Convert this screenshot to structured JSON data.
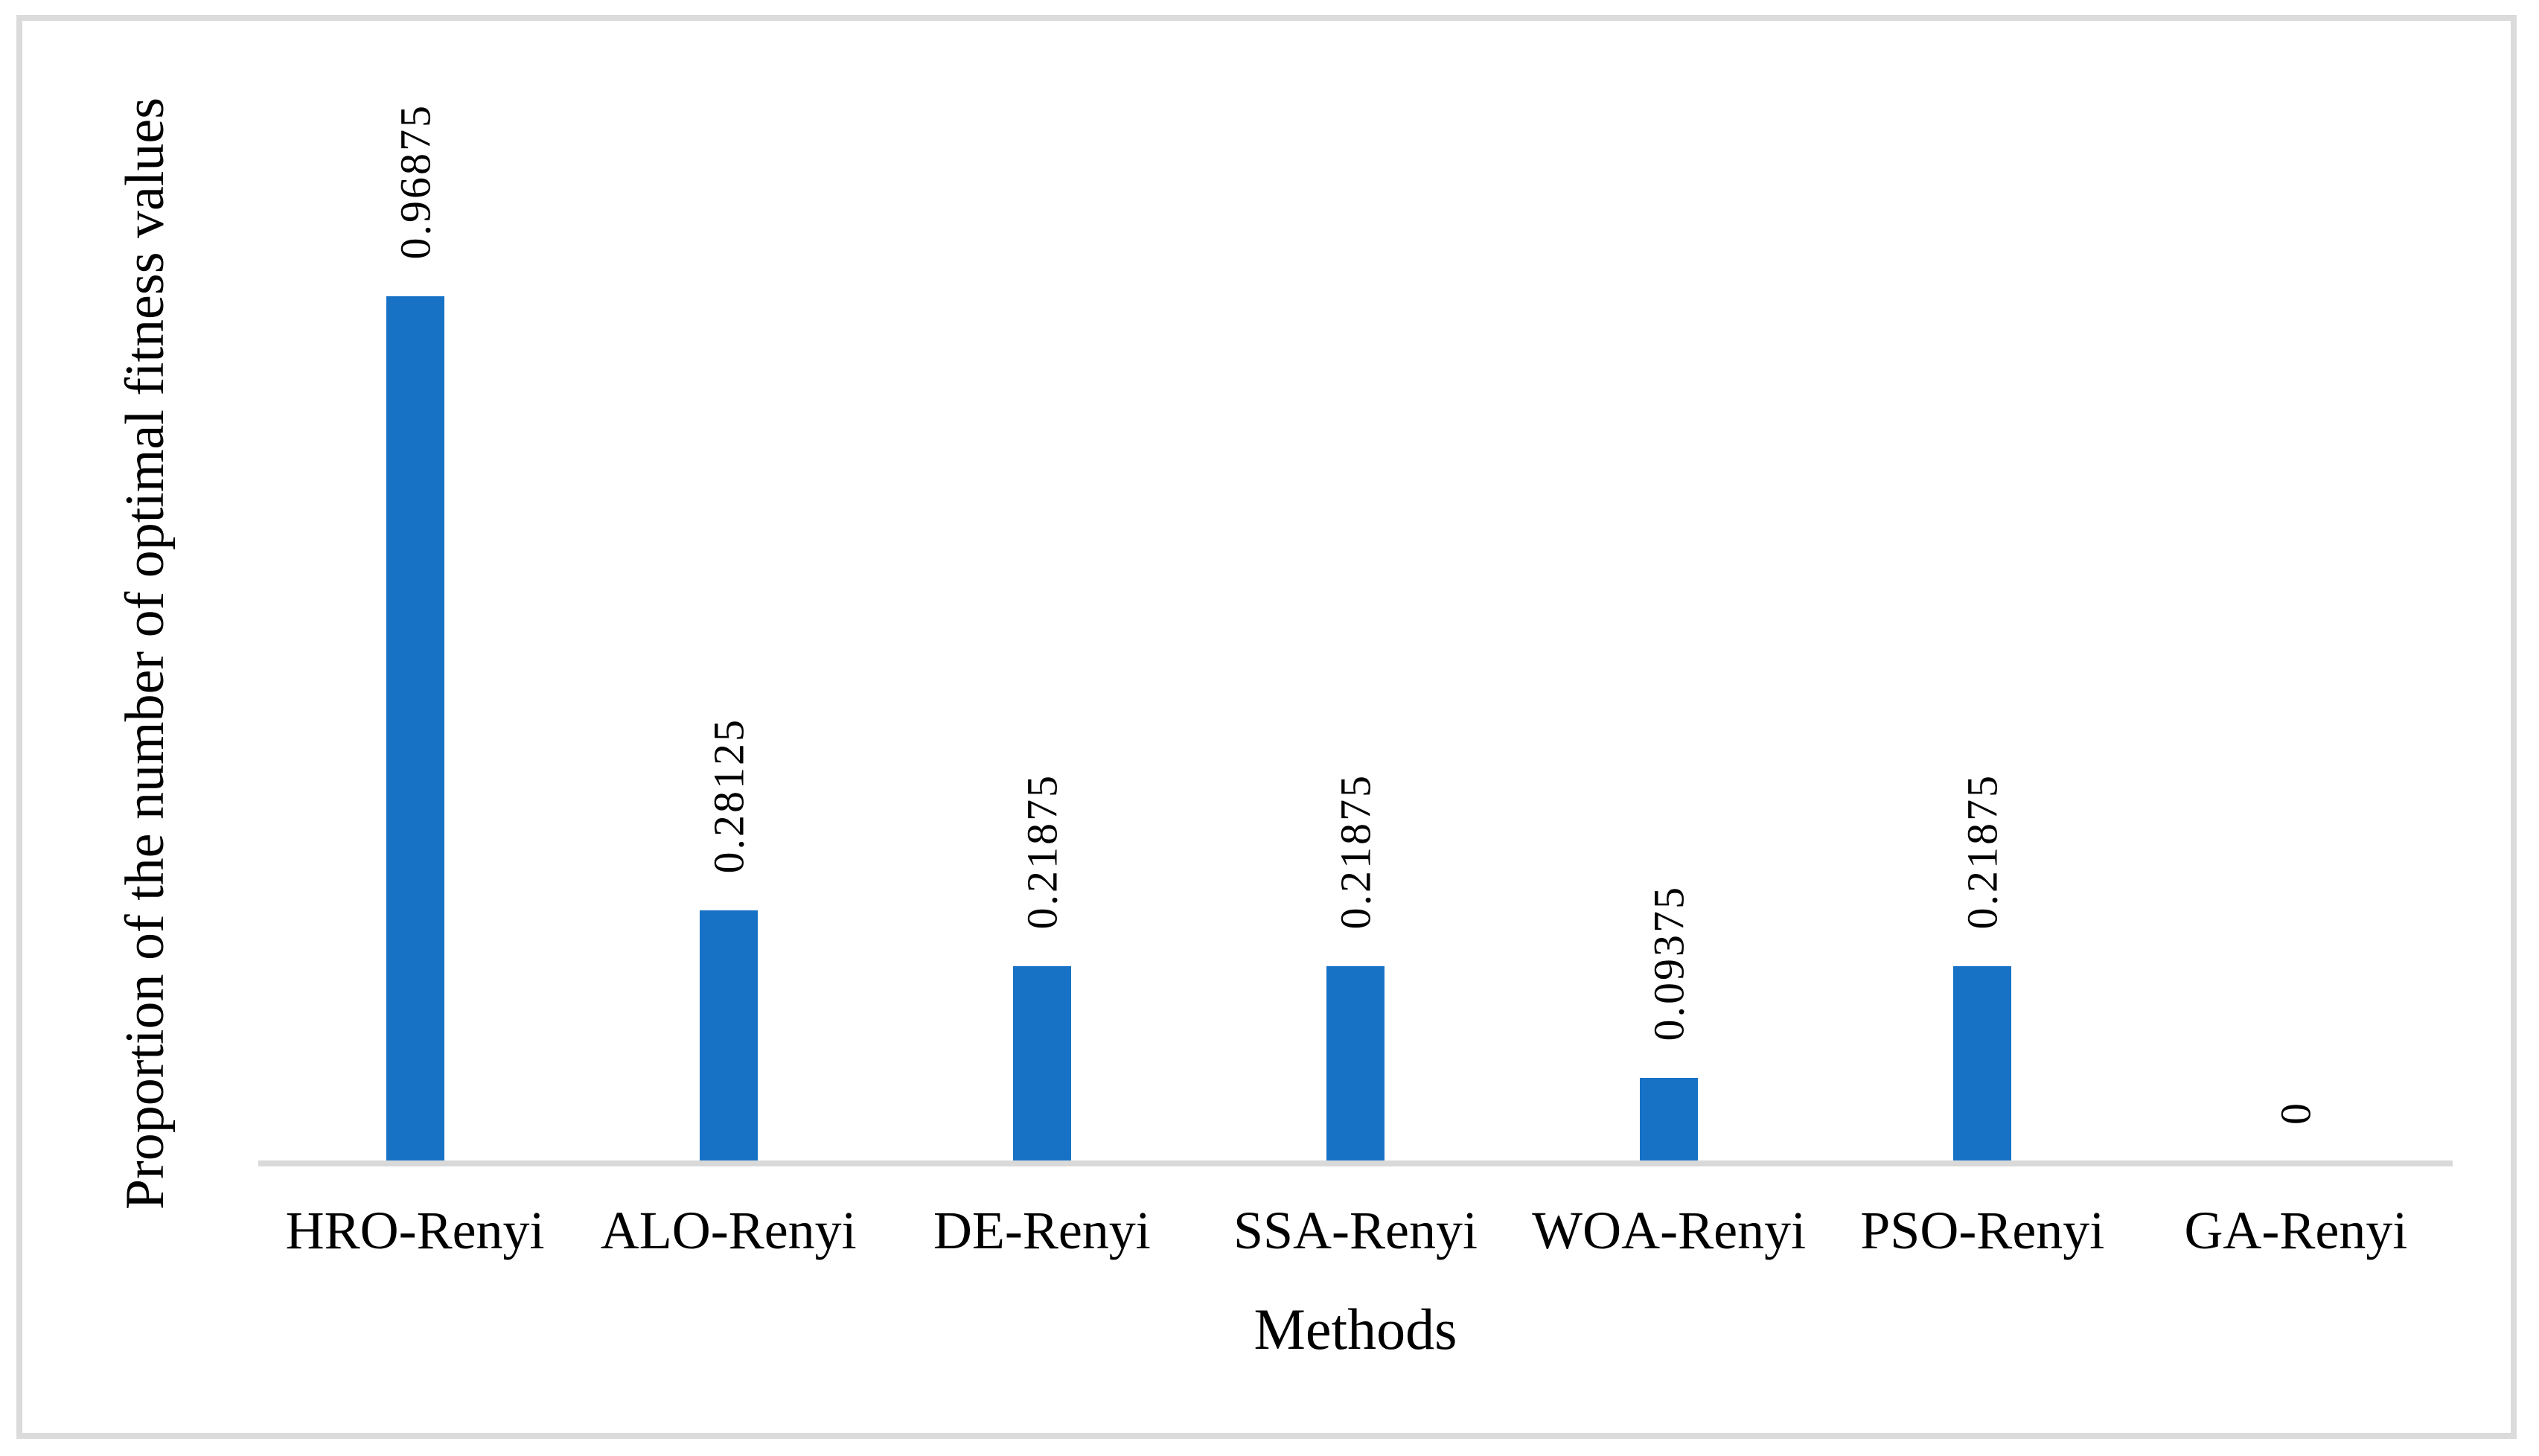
{
  "figure": {
    "background_color": "#ffffff",
    "frame_border_color": "#dbdbdb"
  },
  "chart_data": {
    "type": "bar",
    "title": "",
    "categories": [
      "HRO-Renyi",
      "ALO-Renyi",
      "DE-Renyi",
      "SSA-Renyi",
      "WOA-Renyi",
      "PSO-Renyi",
      "GA-Renyi"
    ],
    "values": [
      0.96875,
      0.28125,
      0.21875,
      0.21875,
      0.09375,
      0.21875,
      0
    ],
    "data_labels": [
      "0.96875",
      "0.28125",
      "0.21875",
      "0.21875",
      "0.09375",
      "0.21875",
      "0"
    ],
    "xlabel": "Methods",
    "ylabel": "Proportion of the number of optimal fitness values",
    "ylim": [
      0,
      1
    ],
    "bar_color": "#1772c6",
    "axis_line_color": "#d9d9d9",
    "data_label_color": "#000000",
    "data_label_rotation_deg": 90,
    "grid": false,
    "legend": false,
    "y_axis_ticks_visible": false
  }
}
